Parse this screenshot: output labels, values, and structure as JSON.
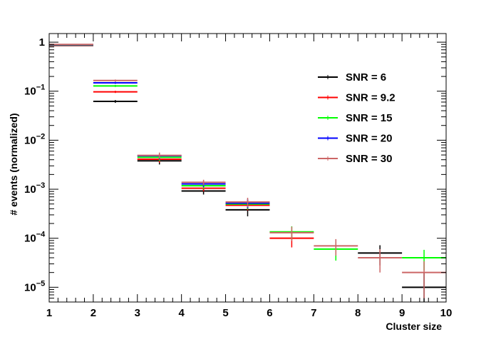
{
  "chart_data": {
    "type": "histogram",
    "xlabel": "Cluster size",
    "ylabel": "# events (normalized)",
    "xlim": [
      1,
      10
    ],
    "ylim": [
      5e-06,
      1.5
    ],
    "yscale": "log",
    "x_ticks": [
      "1",
      "2",
      "3",
      "4",
      "5",
      "6",
      "7",
      "8",
      "9",
      "10"
    ],
    "y_ticks": [
      {
        "value": 1e-05,
        "base": "10",
        "exp": "−5"
      },
      {
        "value": 0.0001,
        "base": "10",
        "exp": "−4"
      },
      {
        "value": 0.001,
        "base": "10",
        "exp": "−3"
      },
      {
        "value": 0.01,
        "base": "10",
        "exp": "−2"
      },
      {
        "value": 0.1,
        "base": "10",
        "exp": "−1"
      },
      {
        "value": 1,
        "base": "1",
        "exp": ""
      }
    ],
    "bins": [
      [
        1,
        2
      ],
      [
        2,
        3
      ],
      [
        3,
        4
      ],
      [
        4,
        5
      ],
      [
        5,
        6
      ],
      [
        6,
        7
      ],
      [
        7,
        8
      ],
      [
        8,
        9
      ],
      [
        9,
        10
      ]
    ],
    "legend_position": "top-right",
    "series": [
      {
        "name": "SNR = 6",
        "color": "#000000",
        "values": [
          0.86,
          0.062,
          0.0038,
          0.00092,
          0.00038,
          null,
          null,
          5e-05,
          1e-05
        ],
        "errors": [
          0.01,
          0.004,
          0.0006,
          0.00014,
          0.0001,
          null,
          null,
          2.2e-05,
          1e-05
        ]
      },
      {
        "name": "SNR = 9.2",
        "color": "#ff0000",
        "values": [
          0.87,
          0.097,
          0.0041,
          0.00105,
          0.00047,
          0.0001,
          null,
          null,
          null
        ],
        "errors": [
          0.01,
          0.005,
          0.0006,
          0.00015,
          0.0001,
          3.5e-05,
          null,
          null,
          null
        ]
      },
      {
        "name": "SNR = 15",
        "color": "#00ff00",
        "values": [
          0.88,
          0.128,
          0.0045,
          0.00118,
          0.0005,
          0.000135,
          6e-05,
          null,
          4e-05
        ],
        "errors": [
          0.01,
          0.006,
          0.0007,
          0.00016,
          0.00011,
          4e-05,
          2.5e-05,
          null,
          1.8e-05
        ]
      },
      {
        "name": "SNR = 20",
        "color": "#0000ff",
        "values": [
          0.89,
          0.148,
          0.0048,
          0.00128,
          0.00052,
          null,
          null,
          null,
          null
        ],
        "errors": [
          0.01,
          0.007,
          0.0007,
          0.00017,
          0.00011,
          null,
          null,
          null,
          null
        ]
      },
      {
        "name": "SNR = 30",
        "color": "#cc6666",
        "values": [
          0.9,
          0.165,
          0.0049,
          0.00138,
          0.00055,
          0.00013,
          7e-05,
          4e-05,
          2e-05
        ],
        "errors": [
          0.01,
          0.008,
          0.0007,
          0.00018,
          0.00012,
          4.2e-05,
          2.6e-05,
          2e-05,
          1.4e-05
        ]
      }
    ]
  }
}
